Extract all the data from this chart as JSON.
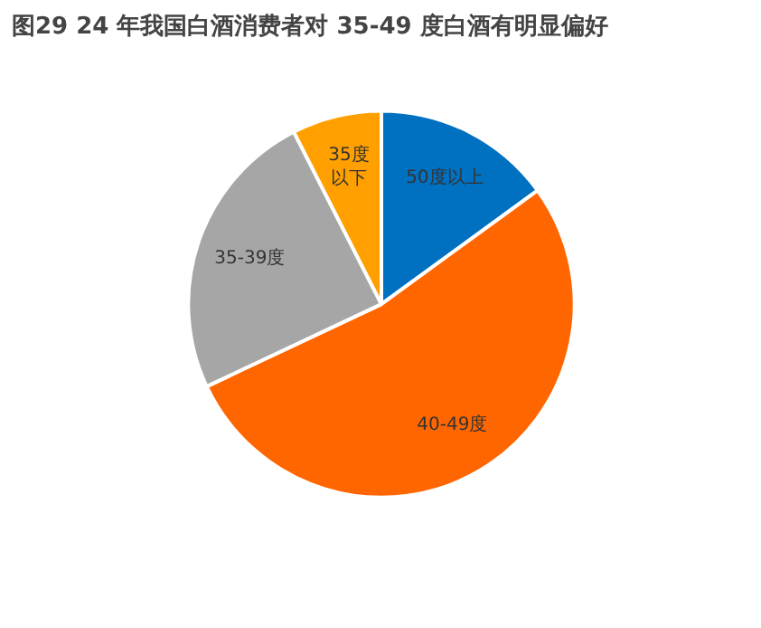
{
  "chart_data": {
    "type": "pie",
    "title": "图29 24 年我国白酒消费者对 35-49 度白酒有明显偏好",
    "categories": [
      "50度以上",
      "40-49度",
      "35-39度",
      "35度以下"
    ],
    "values": [
      15,
      53,
      24.5,
      7.5
    ],
    "colors": [
      "#0070c0",
      "#ff6600",
      "#a6a6a6",
      "#ffa000"
    ]
  }
}
